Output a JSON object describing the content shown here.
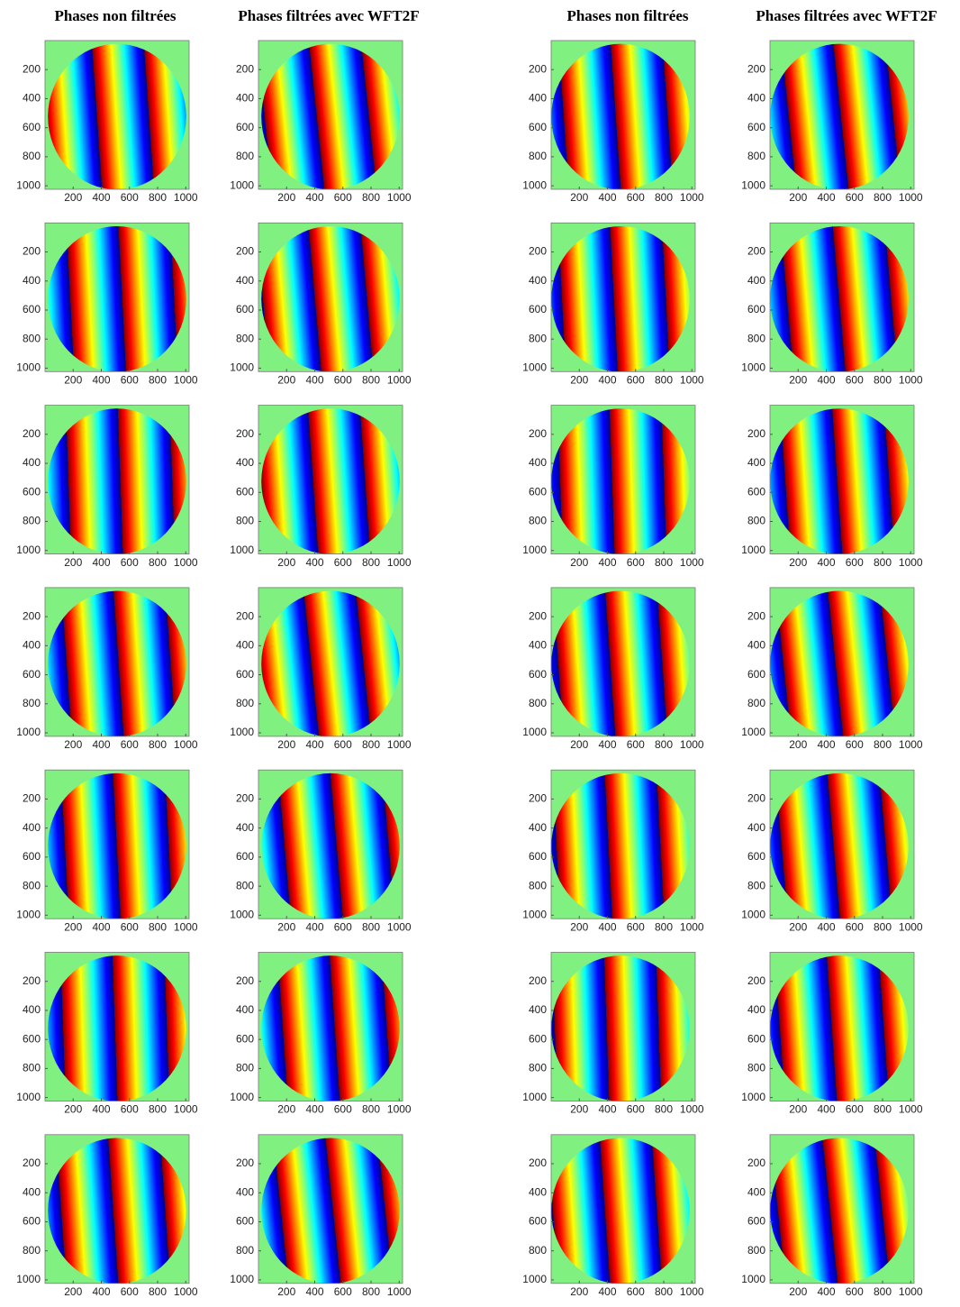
{
  "chart_data": [
    {
      "type": "image",
      "title": "Phases non  filtrées",
      "xlim": [
        0,
        1024
      ],
      "ylim": [
        1024,
        0
      ],
      "xticks": [
        200,
        400,
        600,
        800,
        1000
      ],
      "yticks": [
        200,
        400,
        600,
        800,
        1000
      ]
    },
    {
      "type": "image",
      "title": "Phases filtrées avec WFT2F",
      "xlim": [
        0,
        1024
      ],
      "ylim": [
        1024,
        0
      ],
      "xticks": [
        200,
        400,
        600,
        800,
        1000
      ],
      "yticks": [
        200,
        400,
        600,
        800,
        1000
      ]
    },
    {
      "type": "image",
      "title": "Phases non  filtrées",
      "xlim": [
        0,
        1024
      ],
      "ylim": [
        1024,
        0
      ],
      "xticks": [
        200,
        400,
        600,
        800,
        1000
      ],
      "yticks": [
        200,
        400,
        600,
        800,
        1000
      ]
    },
    {
      "type": "image",
      "title": "Phases filtrées avec WFT2F",
      "xlim": [
        0,
        1024
      ],
      "ylim": [
        1024,
        0
      ],
      "xticks": [
        200,
        400,
        600,
        800,
        1000
      ],
      "yticks": [
        200,
        400,
        600,
        800,
        1000
      ]
    },
    {
      "type": "image",
      "xlim": [
        0,
        1024
      ],
      "ylim": [
        1024,
        0
      ],
      "xticks": [
        200,
        400,
        600,
        800,
        1000
      ],
      "yticks": [
        200,
        400,
        600,
        800,
        1000
      ]
    },
    {
      "type": "image",
      "xlim": [
        0,
        1024
      ],
      "ylim": [
        1024,
        0
      ],
      "xticks": [
        200,
        400,
        600,
        800,
        1000
      ],
      "yticks": [
        200,
        400,
        600,
        800,
        1000
      ]
    },
    {
      "type": "image",
      "xlim": [
        0,
        1024
      ],
      "ylim": [
        1024,
        0
      ],
      "xticks": [
        200,
        400,
        600,
        800,
        1000
      ],
      "yticks": [
        200,
        400,
        600,
        800,
        1000
      ]
    },
    {
      "type": "image",
      "xlim": [
        0,
        1024
      ],
      "ylim": [
        1024,
        0
      ],
      "xticks": [
        200,
        400,
        600,
        800,
        1000
      ],
      "yticks": [
        200,
        400,
        600,
        800,
        1000
      ]
    },
    {
      "type": "image",
      "xlim": [
        0,
        1024
      ],
      "ylim": [
        1024,
        0
      ],
      "xticks": [
        200,
        400,
        600,
        800,
        1000
      ],
      "yticks": [
        200,
        400,
        600,
        800,
        1000
      ]
    },
    {
      "type": "image",
      "xlim": [
        0,
        1024
      ],
      "ylim": [
        1024,
        0
      ],
      "xticks": [
        200,
        400,
        600,
        800,
        1000
      ],
      "yticks": [
        200,
        400,
        600,
        800,
        1000
      ]
    },
    {
      "type": "image",
      "xlim": [
        0,
        1024
      ],
      "ylim": [
        1024,
        0
      ],
      "xticks": [
        200,
        400,
        600,
        800,
        1000
      ],
      "yticks": [
        200,
        400,
        600,
        800,
        1000
      ]
    },
    {
      "type": "image",
      "xlim": [
        0,
        1024
      ],
      "ylim": [
        1024,
        0
      ],
      "xticks": [
        200,
        400,
        600,
        800,
        1000
      ],
      "yticks": [
        200,
        400,
        600,
        800,
        1000
      ]
    },
    {
      "type": "image",
      "xlim": [
        0,
        1024
      ],
      "ylim": [
        1024,
        0
      ],
      "xticks": [
        200,
        400,
        600,
        800,
        1000
      ],
      "yticks": [
        200,
        400,
        600,
        800,
        1000
      ]
    },
    {
      "type": "image",
      "xlim": [
        0,
        1024
      ],
      "ylim": [
        1024,
        0
      ],
      "xticks": [
        200,
        400,
        600,
        800,
        1000
      ],
      "yticks": [
        200,
        400,
        600,
        800,
        1000
      ]
    },
    {
      "type": "image",
      "xlim": [
        0,
        1024
      ],
      "ylim": [
        1024,
        0
      ],
      "xticks": [
        200,
        400,
        600,
        800,
        1000
      ],
      "yticks": [
        200,
        400,
        600,
        800,
        1000
      ]
    },
    {
      "type": "image",
      "xlim": [
        0,
        1024
      ],
      "ylim": [
        1024,
        0
      ],
      "xticks": [
        200,
        400,
        600,
        800,
        1000
      ],
      "yticks": [
        200,
        400,
        600,
        800,
        1000
      ]
    },
    {
      "type": "image",
      "xlim": [
        0,
        1024
      ],
      "ylim": [
        1024,
        0
      ],
      "xticks": [
        200,
        400,
        600,
        800,
        1000
      ],
      "yticks": [
        200,
        400,
        600,
        800,
        1000
      ]
    },
    {
      "type": "image",
      "xlim": [
        0,
        1024
      ],
      "ylim": [
        1024,
        0
      ],
      "xticks": [
        200,
        400,
        600,
        800,
        1000
      ],
      "yticks": [
        200,
        400,
        600,
        800,
        1000
      ]
    },
    {
      "type": "image",
      "xlim": [
        0,
        1024
      ],
      "ylim": [
        1024,
        0
      ],
      "xticks": [
        200,
        400,
        600,
        800,
        1000
      ],
      "yticks": [
        200,
        400,
        600,
        800,
        1000
      ]
    },
    {
      "type": "image",
      "xlim": [
        0,
        1024
      ],
      "ylim": [
        1024,
        0
      ],
      "xticks": [
        200,
        400,
        600,
        800,
        1000
      ],
      "yticks": [
        200,
        400,
        600,
        800,
        1000
      ]
    },
    {
      "type": "image",
      "xlim": [
        0,
        1024
      ],
      "ylim": [
        1024,
        0
      ],
      "xticks": [
        200,
        400,
        600,
        800,
        1000
      ],
      "yticks": [
        200,
        400,
        600,
        800,
        1000
      ]
    },
    {
      "type": "image",
      "xlim": [
        0,
        1024
      ],
      "ylim": [
        1024,
        0
      ],
      "xticks": [
        200,
        400,
        600,
        800,
        1000
      ],
      "yticks": [
        200,
        400,
        600,
        800,
        1000
      ]
    },
    {
      "type": "image",
      "xlim": [
        0,
        1024
      ],
      "ylim": [
        1024,
        0
      ],
      "xticks": [
        200,
        400,
        600,
        800,
        1000
      ],
      "yticks": [
        200,
        400,
        600,
        800,
        1000
      ]
    },
    {
      "type": "image",
      "xlim": [
        0,
        1024
      ],
      "ylim": [
        1024,
        0
      ],
      "xticks": [
        200,
        400,
        600,
        800,
        1000
      ],
      "yticks": [
        200,
        400,
        600,
        800,
        1000
      ]
    },
    {
      "type": "image",
      "xlim": [
        0,
        1024
      ],
      "ylim": [
        1024,
        0
      ],
      "xticks": [
        200,
        400,
        600,
        800,
        1000
      ],
      "yticks": [
        200,
        400,
        600,
        800,
        1000
      ]
    },
    {
      "type": "image",
      "xlim": [
        0,
        1024
      ],
      "ylim": [
        1024,
        0
      ],
      "xticks": [
        200,
        400,
        600,
        800,
        1000
      ],
      "yticks": [
        200,
        400,
        600,
        800,
        1000
      ]
    },
    {
      "type": "image",
      "xlim": [
        0,
        1024
      ],
      "ylim": [
        1024,
        0
      ],
      "xticks": [
        200,
        400,
        600,
        800,
        1000
      ],
      "yticks": [
        200,
        400,
        600,
        800,
        1000
      ]
    },
    {
      "type": "image",
      "xlim": [
        0,
        1024
      ],
      "ylim": [
        1024,
        0
      ],
      "xticks": [
        200,
        400,
        600,
        800,
        1000
      ],
      "yticks": [
        200,
        400,
        600,
        800,
        1000
      ]
    }
  ]
}
